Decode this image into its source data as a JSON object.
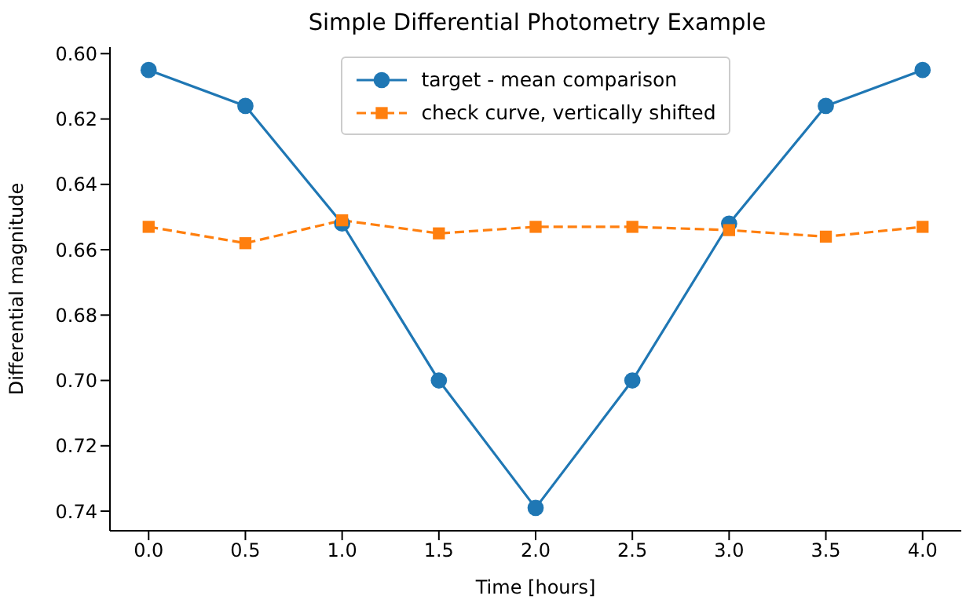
{
  "chart_data": {
    "type": "line",
    "title": "Simple Differential Photometry Example",
    "xlabel": "Time [hours]",
    "ylabel": "Differential magnitude",
    "x": [
      0,
      0.5,
      1,
      1.5,
      2,
      2.5,
      3,
      3.5,
      4
    ],
    "series": [
      {
        "name": "target - mean comparison",
        "color": "#1f77b4",
        "marker": "circle",
        "line_style": "solid",
        "values": [
          0.605,
          0.616,
          0.652,
          0.7,
          0.739,
          0.7,
          0.652,
          0.616,
          0.605
        ]
      },
      {
        "name": "check curve, vertically shifted",
        "color": "#ff7f0e",
        "marker": "square",
        "line_style": "dashed",
        "values": [
          0.653,
          0.658,
          0.651,
          0.655,
          0.653,
          0.653,
          0.654,
          0.656,
          0.653
        ]
      }
    ],
    "xlim": [
      -0.2,
      4.2
    ],
    "xticks": [
      {
        "value": 0,
        "label": "0.0"
      },
      {
        "value": 0.5,
        "label": "0.5"
      },
      {
        "value": 1,
        "label": "1.0"
      },
      {
        "value": 1.5,
        "label": "1.5"
      },
      {
        "value": 2,
        "label": "2.0"
      },
      {
        "value": 2.5,
        "label": "2.5"
      },
      {
        "value": 3,
        "label": "3.0"
      },
      {
        "value": 3.5,
        "label": "3.5"
      },
      {
        "value": 4,
        "label": "4.0"
      }
    ],
    "ylim": [
      0.746,
      0.598
    ],
    "yticks": [
      {
        "value": 0.6,
        "label": "0.60"
      },
      {
        "value": 0.62,
        "label": "0.62"
      },
      {
        "value": 0.64,
        "label": "0.64"
      },
      {
        "value": 0.66,
        "label": "0.66"
      },
      {
        "value": 0.68,
        "label": "0.68"
      },
      {
        "value": 0.7,
        "label": "0.70"
      },
      {
        "value": 0.72,
        "label": "0.72"
      },
      {
        "value": 0.74,
        "label": "0.74"
      }
    ],
    "grid": false,
    "legend": "top"
  }
}
